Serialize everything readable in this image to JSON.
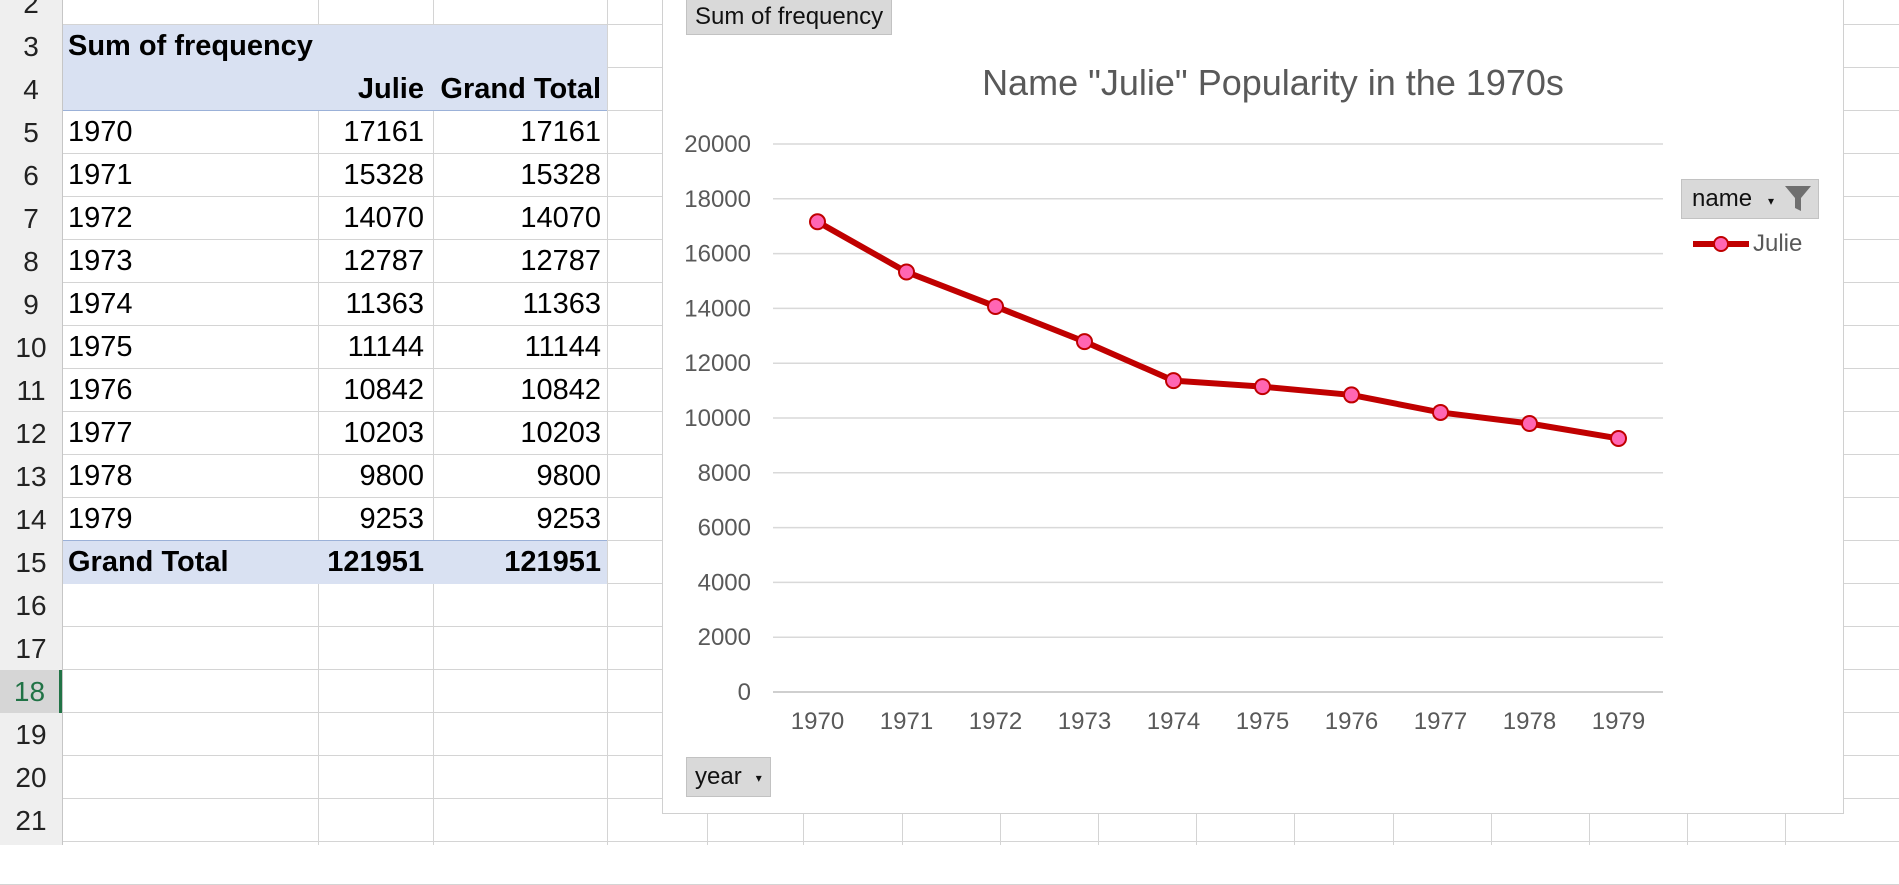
{
  "sheet": {
    "row_numbers": [
      "2",
      "3",
      "4",
      "5",
      "6",
      "7",
      "8",
      "9",
      "10",
      "11",
      "12",
      "13",
      "14",
      "15",
      "16",
      "17",
      "18",
      "19",
      "20",
      "21"
    ],
    "active_row": "18"
  },
  "pivot_table": {
    "title": "Sum of frequency",
    "col_header": "Julie",
    "total_header": "Grand Total",
    "rows": [
      {
        "year": "1970",
        "julie": "17161",
        "total": "17161"
      },
      {
        "year": "1971",
        "julie": "15328",
        "total": "15328"
      },
      {
        "year": "1972",
        "julie": "14070",
        "total": "14070"
      },
      {
        "year": "1973",
        "julie": "12787",
        "total": "12787"
      },
      {
        "year": "1974",
        "julie": "11363",
        "total": "11363"
      },
      {
        "year": "1975",
        "julie": "11144",
        "total": "11144"
      },
      {
        "year": "1976",
        "julie": "10842",
        "total": "10842"
      },
      {
        "year": "1977",
        "julie": "10203",
        "total": "10203"
      },
      {
        "year": "1978",
        "julie": "9800",
        "total": "9800"
      },
      {
        "year": "1979",
        "julie": "9253",
        "total": "9253"
      }
    ],
    "grand_total_label": "Grand Total",
    "grand_total_julie": "121951",
    "grand_total_total": "121951"
  },
  "chart": {
    "values_button": "Sum of frequency",
    "axis_button": "year",
    "legend_button": "name",
    "legend_entry": "Julie"
  },
  "chart_data": {
    "type": "line",
    "title": "Name \"Julie\" Popularity in the 1970s",
    "xlabel": "",
    "ylabel": "",
    "categories": [
      "1970",
      "1971",
      "1972",
      "1973",
      "1974",
      "1975",
      "1976",
      "1977",
      "1978",
      "1979"
    ],
    "series": [
      {
        "name": "Julie",
        "values": [
          17161,
          15328,
          14070,
          12787,
          11363,
          11144,
          10842,
          10203,
          9800,
          9253
        ]
      }
    ],
    "ylim": [
      0,
      20000
    ],
    "yticks": [
      0,
      2000,
      4000,
      6000,
      8000,
      10000,
      12000,
      14000,
      16000,
      18000,
      20000
    ],
    "grid": true,
    "legend": "right",
    "line_color": "#c00000",
    "marker_color": "#ff66b3"
  }
}
